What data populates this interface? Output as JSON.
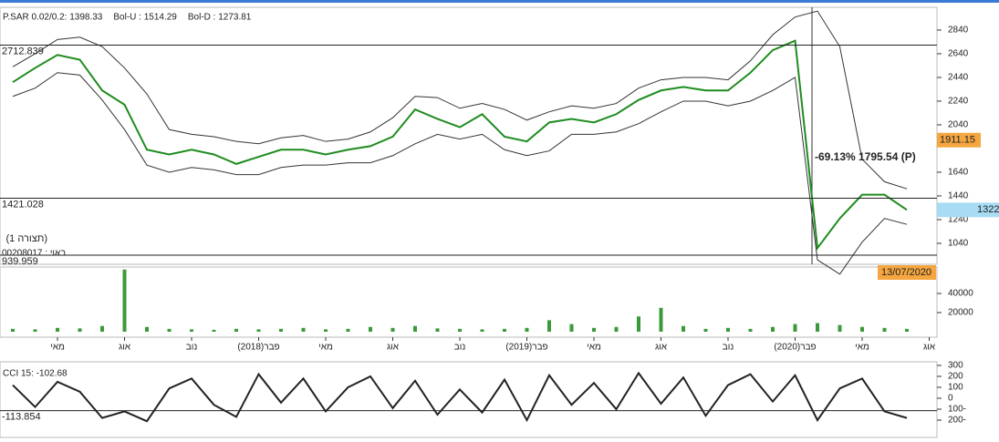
{
  "chart_data": [
    {
      "type": "line",
      "legend_texts": [
        {
          "text": "P.SAR 0.02/0.2: 1398.33",
          "color": "#e02020"
        },
        {
          "text": "Bol-U : 1514.29",
          "color": "#e02020"
        },
        {
          "text": "Bol-D : 1273.81",
          "color": "#2a8a2a"
        }
      ],
      "series": [
        {
          "color": "#1e8c1e",
          "values": [
            2400,
            2520,
            2630,
            2590,
            2330,
            2210,
            1830,
            1790,
            1830,
            1790,
            1710,
            1770,
            1830,
            1830,
            1790,
            1830,
            1860,
            1940,
            2170,
            2090,
            2020,
            2130,
            1940,
            1900,
            2060,
            2090,
            2060,
            2130,
            2250,
            2330,
            2360,
            2330,
            2330,
            2480,
            2670,
            2750,
            1000,
            1250,
            1450,
            1450,
            1322,
            null
          ]
        },
        {
          "color": "#333333",
          "values": [
            2530,
            2640,
            2760,
            2780,
            2700,
            2520,
            2300,
            2000,
            1960,
            1940,
            1900,
            1880,
            1930,
            1950,
            1900,
            1920,
            1980,
            2100,
            2280,
            2270,
            2180,
            2220,
            2170,
            2080,
            2150,
            2200,
            2180,
            2220,
            2350,
            2420,
            2440,
            2440,
            2420,
            2580,
            2800,
            2950,
            3000,
            2700,
            1750,
            1560,
            1500,
            null
          ]
        },
        {
          "color": "#333333",
          "values": [
            2280,
            2350,
            2480,
            2460,
            2250,
            2000,
            1700,
            1640,
            1680,
            1660,
            1620,
            1620,
            1680,
            1700,
            1700,
            1720,
            1720,
            1780,
            1880,
            1960,
            1920,
            1960,
            1830,
            1780,
            1820,
            1960,
            1960,
            1980,
            2050,
            2150,
            2240,
            2240,
            2200,
            2240,
            2330,
            2440,
            900,
            780,
            1050,
            1250,
            1200,
            null
          ]
        }
      ],
      "ylim": [
        863,
        3032
      ],
      "yticks": [
        1040,
        1240,
        1440,
        1640,
        2040,
        2240,
        2440,
        2640,
        2840
      ],
      "hlines": [
        2712.839,
        1421.028,
        939.959
      ],
      "price_tags": [
        {
          "value": 1911.15,
          "color": "#f5a640"
        },
        {
          "value": 1322,
          "color": "#a8dcf5"
        }
      ],
      "date_tag": "13/07/2020",
      "annotations": [
        "(תצורה 1)",
        "00208017 : באוי",
        "-69.13% 1795.54 (P)"
      ]
    },
    {
      "type": "bar",
      "categories": [
        null,
        null,
        "מאי",
        null,
        null,
        "אוג",
        null,
        null,
        "נוב",
        null,
        null,
        "פבר(2018)",
        null,
        null,
        "מאי",
        null,
        null,
        "אוג",
        null,
        null,
        "נוב",
        null,
        null,
        "פבר(2019)",
        null,
        null,
        "מאי",
        null,
        null,
        "אוג",
        null,
        null,
        "נוב",
        null,
        null,
        "פבר(2020)",
        null,
        null,
        "מאי",
        null,
        null,
        "אוג"
      ],
      "values": [
        3000,
        2500,
        4000,
        3500,
        6000,
        65000,
        5000,
        3000,
        2500,
        2000,
        3000,
        2500,
        3000,
        4000,
        2500,
        3000,
        5000,
        4000,
        6000,
        3500,
        3000,
        2500,
        3000,
        4000,
        12000,
        8000,
        4000,
        5000,
        16000,
        25000,
        6000,
        3000,
        4000,
        3000,
        5000,
        8000,
        9000,
        7000,
        5000,
        4000,
        3000,
        null
      ],
      "color": "#3a9a3a",
      "ylim": [
        0,
        67600
      ],
      "yticks": [
        20000,
        40000
      ]
    },
    {
      "type": "line",
      "title": "CCI 15: -102.68",
      "series": [
        {
          "color": "#222222",
          "values": [
            120,
            -80,
            150,
            60,
            -180,
            -120,
            -210,
            90,
            180,
            -60,
            -170,
            220,
            -40,
            180,
            -120,
            100,
            200,
            -90,
            160,
            -150,
            80,
            -130,
            170,
            -200,
            210,
            -60,
            140,
            -100,
            230,
            -50,
            190,
            -160,
            120,
            220,
            -30,
            210,
            -200,
            90,
            180,
            -120,
            -180,
            null
          ]
        }
      ],
      "ylim": [
        -358,
        333
      ],
      "yticks": [
        300,
        200,
        100,
        0,
        {
          "value": -100,
          "label": "100-"
        },
        {
          "value": -200,
          "label": "200-"
        }
      ],
      "hlines": [
        -113.854
      ]
    }
  ]
}
